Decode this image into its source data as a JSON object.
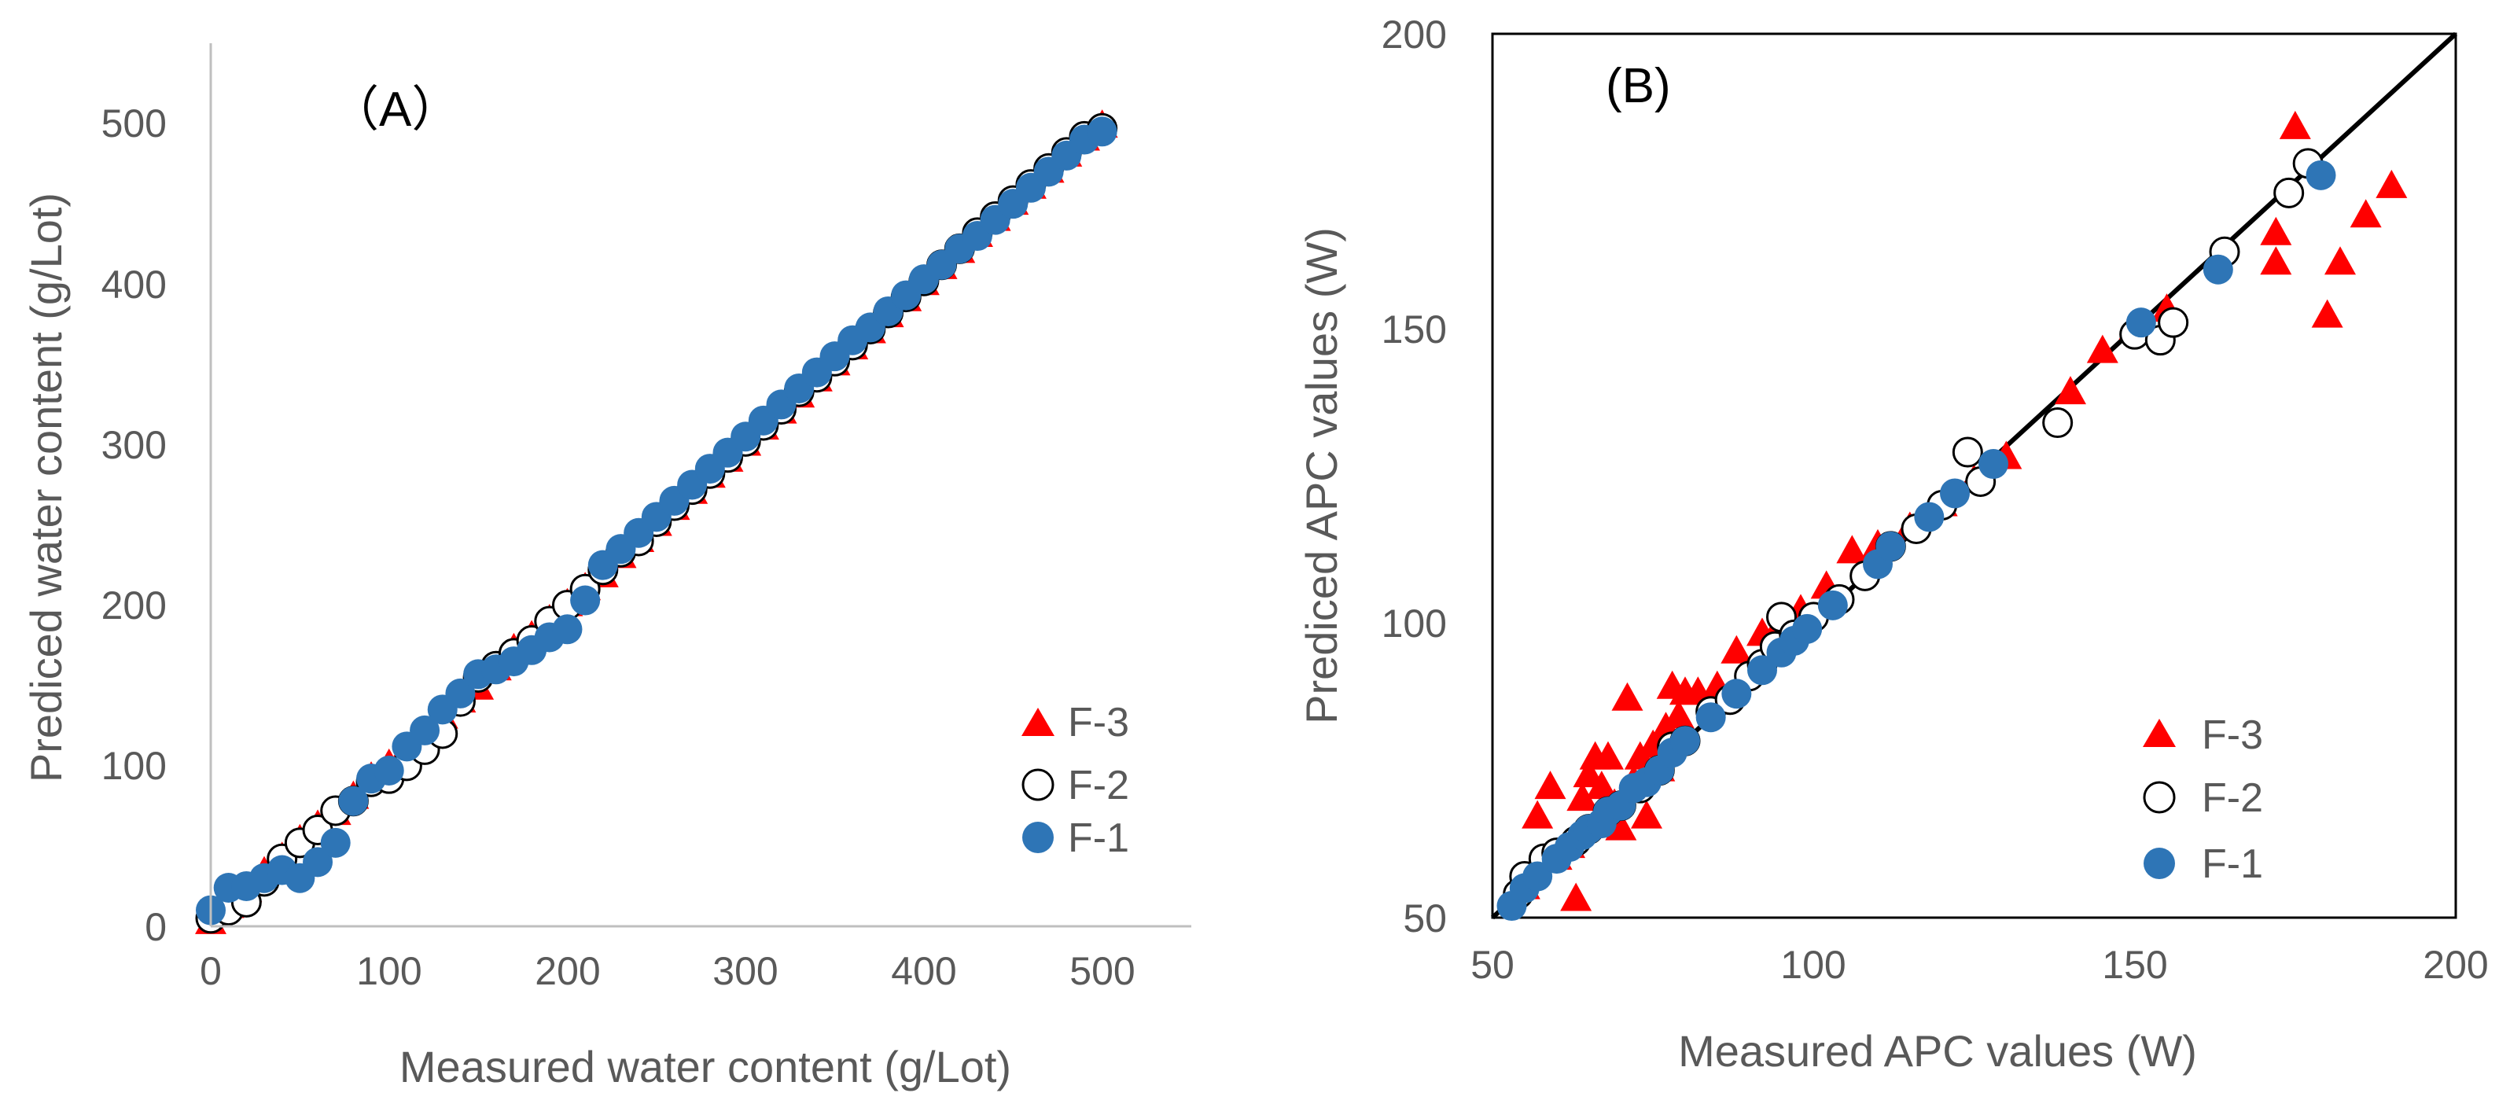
{
  "colors": {
    "F-3": "#ff0000",
    "F-2": "#000000",
    "F-1": "#2e75b6",
    "axis": "#bfbfbf",
    "text": "#595959"
  },
  "chart_data": [
    {
      "type": "scatter",
      "panel_label": "（A）",
      "xlabel": "Measured water content (g/Lot)",
      "ylabel": "Prediced water content (g/Lot)",
      "xlim": [
        0,
        550
      ],
      "ylim": [
        0,
        550
      ],
      "xticks": [
        "0",
        "100",
        "200",
        "300",
        "400",
        "500"
      ],
      "yticks": [
        "0",
        "100",
        "200",
        "300",
        "400",
        "500"
      ],
      "legend": [
        "F-3",
        "F-2",
        "F-1"
      ],
      "legend_position": "bottom-right",
      "series": [
        {
          "name": "F-3",
          "marker": "triangle",
          "x": [
            0,
            10,
            20,
            30,
            40,
            50,
            60,
            70,
            80,
            90,
            100,
            110,
            120,
            130,
            140,
            150,
            160,
            170,
            180,
            190,
            200,
            210,
            220,
            230,
            240,
            250,
            260,
            270,
            280,
            290,
            300,
            310,
            320,
            330,
            340,
            350,
            360,
            370,
            380,
            390,
            400,
            410,
            420,
            430,
            440,
            450,
            460,
            470,
            480,
            490,
            500
          ],
          "y": [
            2,
            12,
            22,
            33,
            42,
            53,
            62,
            70,
            80,
            92,
            100,
            110,
            120,
            130,
            140,
            148,
            160,
            172,
            180,
            190,
            200,
            210,
            218,
            230,
            240,
            250,
            260,
            270,
            280,
            290,
            300,
            310,
            320,
            330,
            340,
            350,
            360,
            370,
            380,
            390,
            400,
            410,
            420,
            430,
            440,
            450,
            460,
            470,
            480,
            490,
            498
          ]
        },
        {
          "name": "F-2",
          "marker": "circle-open",
          "x": [
            0,
            10,
            20,
            30,
            40,
            50,
            60,
            70,
            80,
            90,
            100,
            110,
            120,
            130,
            140,
            150,
            160,
            170,
            180,
            190,
            200,
            210,
            220,
            230,
            240,
            250,
            260,
            270,
            280,
            290,
            300,
            310,
            320,
            330,
            340,
            350,
            360,
            370,
            380,
            390,
            400,
            410,
            420,
            430,
            440,
            450,
            460,
            470,
            480,
            490,
            500
          ],
          "y": [
            5,
            10,
            15,
            28,
            42,
            52,
            60,
            72,
            78,
            90,
            92,
            100,
            110,
            120,
            140,
            155,
            162,
            170,
            178,
            190,
            200,
            210,
            222,
            233,
            240,
            252,
            262,
            272,
            282,
            292,
            302,
            312,
            322,
            333,
            342,
            352,
            362,
            372,
            382,
            392,
            402,
            412,
            422,
            432,
            442,
            452,
            462,
            472,
            482,
            492,
            497
          ]
        },
        {
          "name": "F-1",
          "marker": "circle-filled",
          "x": [
            0,
            10,
            20,
            30,
            40,
            50,
            60,
            70,
            80,
            90,
            100,
            110,
            120,
            130,
            140,
            150,
            160,
            170,
            180,
            190,
            200,
            210,
            220,
            230,
            240,
            250,
            260,
            270,
            280,
            290,
            300,
            310,
            320,
            330,
            340,
            350,
            360,
            370,
            380,
            390,
            400,
            410,
            420,
            430,
            440,
            450,
            460,
            470,
            480,
            490,
            500
          ],
          "y": [
            10,
            24,
            25,
            30,
            35,
            30,
            40,
            52,
            78,
            92,
            97,
            112,
            122,
            135,
            145,
            157,
            160,
            165,
            172,
            180,
            185,
            203,
            225,
            235,
            245,
            255,
            265,
            275,
            285,
            295,
            305,
            315,
            325,
            335,
            345,
            355,
            365,
            373,
            383,
            393,
            403,
            412,
            422,
            430,
            440,
            450,
            460,
            470,
            480,
            490,
            495
          ]
        }
      ]
    },
    {
      "type": "scatter",
      "panel_label": "(B)",
      "xlabel": "Measured APC values (W)",
      "ylabel": "Prediced APC values (W)",
      "xlim": [
        50,
        200
      ],
      "ylim": [
        50,
        200
      ],
      "xticks": [
        "50",
        "100",
        "150",
        "200"
      ],
      "yticks": [
        "50",
        "100",
        "150",
        "200"
      ],
      "legend": [
        "F-3",
        "F-2",
        "F-1"
      ],
      "legend_position": "bottom-right",
      "reference_line": "y = x",
      "series": [
        {
          "name": "F-3",
          "marker": "triangle",
          "x": [
            55,
            57,
            59,
            60,
            62,
            63,
            64,
            65,
            66,
            67,
            68,
            69,
            70,
            71,
            72,
            73,
            74,
            75,
            76,
            77,
            78,
            79,
            80,
            82,
            85,
            88,
            92,
            95,
            98,
            102,
            106,
            110,
            115,
            120,
            125,
            130,
            140,
            145,
            150,
            155,
            172,
            172,
            175,
            180,
            182,
            186,
            190
          ],
          "y": [
            55,
            67,
            72,
            60,
            62,
            53,
            70,
            74,
            77,
            72,
            77,
            69,
            65,
            87,
            73,
            77,
            67,
            79,
            75,
            82,
            89,
            84,
            88,
            88,
            89,
            95,
            98,
            100,
            102,
            106,
            112,
            113,
            116,
            120,
            124,
            128,
            139,
            146,
            150,
            153,
            166,
            161,
            184,
            152,
            161,
            169,
            174
          ]
        },
        {
          "name": "F-2",
          "marker": "circle-open",
          "x": [
            54,
            55,
            58,
            60,
            63,
            65,
            68,
            70,
            73,
            76,
            78,
            80,
            84,
            87,
            90,
            92,
            94,
            95,
            97,
            100,
            104,
            108,
            112,
            116,
            120,
            124,
            126,
            138,
            150,
            154,
            156,
            164,
            174,
            177
          ],
          "y": [
            54,
            57,
            60,
            61,
            63,
            65,
            68,
            69,
            72,
            75,
            79,
            80,
            85,
            87,
            91,
            93,
            96,
            101,
            98,
            101,
            104,
            108,
            113,
            116,
            120,
            129,
            124,
            134,
            149,
            148,
            151,
            163,
            173,
            178
          ]
        },
        {
          "name": "F-1",
          "marker": "circle-filled",
          "x": [
            53,
            55,
            57,
            60,
            62,
            64,
            65,
            67,
            68,
            70,
            72,
            74,
            76,
            78,
            80,
            84,
            88,
            92,
            95,
            97,
            99,
            103,
            110,
            112,
            118,
            122,
            128,
            151,
            163,
            179
          ],
          "y": [
            52,
            55,
            57,
            60,
            62,
            64,
            65,
            66,
            68,
            69,
            72,
            73,
            75,
            78,
            80,
            84,
            88,
            92,
            95,
            97,
            99,
            103,
            110,
            113,
            118,
            122,
            127,
            151,
            160,
            176
          ]
        }
      ]
    }
  ]
}
